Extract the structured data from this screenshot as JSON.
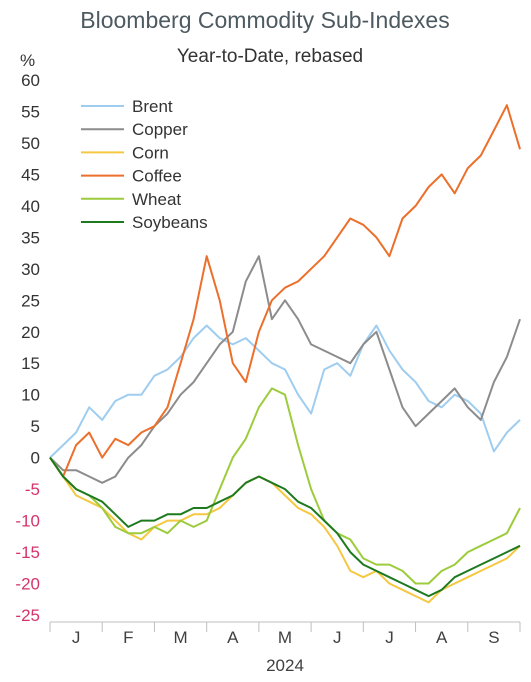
{
  "chart_data": {
    "type": "line",
    "title": "Bloomberg Commodity Sub-Indexes",
    "subtitle": "Year-to-Date, rebased",
    "ylabel": "%",
    "xlabel": "2024",
    "ylim": [
      -25,
      60
    ],
    "yticks": [
      60,
      55,
      50,
      45,
      40,
      35,
      30,
      25,
      20,
      15,
      10,
      5,
      0,
      -5,
      -10,
      -15,
      -20,
      -25
    ],
    "xlim": [
      0,
      9
    ],
    "month_ticks": [
      "J",
      "F",
      "M",
      "A",
      "M",
      "J",
      "J",
      "A",
      "S"
    ],
    "grid": false,
    "legend_position": "top-left",
    "negative_tick_color": "#d6336c",
    "positive_tick_color": "#333333",
    "series": [
      {
        "name": "Brent",
        "color": "#9fcdf0",
        "x": [
          0,
          0.25,
          0.5,
          0.75,
          1,
          1.25,
          1.5,
          1.75,
          2,
          2.25,
          2.5,
          2.75,
          3,
          3.25,
          3.5,
          3.75,
          4,
          4.25,
          4.5,
          4.75,
          5,
          5.25,
          5.5,
          5.75,
          6,
          6.25,
          6.5,
          6.75,
          7,
          7.25,
          7.5,
          7.75,
          8,
          8.25,
          8.5,
          8.75,
          9
        ],
        "values": [
          0,
          2,
          4,
          8,
          6,
          9,
          10,
          10,
          13,
          14,
          16,
          19,
          21,
          19,
          18,
          19,
          17,
          15,
          14,
          10,
          7,
          14,
          15,
          13,
          18,
          21,
          17,
          14,
          12,
          9,
          8,
          10,
          9,
          7,
          1,
          4,
          6
        ]
      },
      {
        "name": "Copper",
        "color": "#8c8c8c",
        "x": [
          0,
          0.25,
          0.5,
          0.75,
          1,
          1.25,
          1.5,
          1.75,
          2,
          2.25,
          2.5,
          2.75,
          3,
          3.25,
          3.5,
          3.75,
          4,
          4.25,
          4.5,
          4.75,
          5,
          5.25,
          5.5,
          5.75,
          6,
          6.25,
          6.5,
          6.75,
          7,
          7.25,
          7.5,
          7.75,
          8,
          8.25,
          8.5,
          8.75,
          9
        ],
        "values": [
          0,
          -2,
          -2,
          -3,
          -4,
          -3,
          0,
          2,
          5,
          7,
          10,
          12,
          15,
          18,
          20,
          28,
          32,
          22,
          25,
          22,
          18,
          17,
          16,
          15,
          18,
          20,
          14,
          8,
          5,
          7,
          9,
          11,
          8,
          6,
          12,
          16,
          22
        ]
      },
      {
        "name": "Corn",
        "color": "#f5c842",
        "x": [
          0,
          0.25,
          0.5,
          0.75,
          1,
          1.25,
          1.5,
          1.75,
          2,
          2.25,
          2.5,
          2.75,
          3,
          3.25,
          3.5,
          3.75,
          4,
          4.25,
          4.5,
          4.75,
          5,
          5.25,
          5.5,
          5.75,
          6,
          6.25,
          6.5,
          6.75,
          7,
          7.25,
          7.5,
          7.75,
          8,
          8.25,
          8.5,
          8.75,
          9
        ],
        "values": [
          0,
          -3,
          -6,
          -7,
          -8,
          -10,
          -12,
          -13,
          -11,
          -10,
          -10,
          -9,
          -9,
          -8,
          -6,
          -4,
          -3,
          -4,
          -6,
          -8,
          -9,
          -11,
          -14,
          -18,
          -19,
          -18,
          -20,
          -21,
          -22,
          -23,
          -21,
          -20,
          -19,
          -18,
          -17,
          -16,
          -14
        ]
      },
      {
        "name": "Coffee",
        "color": "#ec6f2b",
        "x": [
          0,
          0.25,
          0.5,
          0.75,
          1,
          1.25,
          1.5,
          1.75,
          2,
          2.25,
          2.5,
          2.75,
          3,
          3.25,
          3.5,
          3.75,
          4,
          4.25,
          4.5,
          4.75,
          5,
          5.25,
          5.5,
          5.75,
          6,
          6.25,
          6.5,
          6.75,
          7,
          7.25,
          7.5,
          7.75,
          8,
          8.25,
          8.5,
          8.75,
          9
        ],
        "values": [
          0,
          -3,
          2,
          4,
          0,
          3,
          2,
          4,
          5,
          8,
          15,
          22,
          32,
          25,
          15,
          12,
          20,
          25,
          27,
          28,
          30,
          32,
          35,
          38,
          37,
          35,
          32,
          38,
          40,
          43,
          45,
          42,
          46,
          48,
          52,
          56,
          49
        ]
      },
      {
        "name": "Wheat",
        "color": "#9ccc3c",
        "x": [
          0,
          0.25,
          0.5,
          0.75,
          1,
          1.25,
          1.5,
          1.75,
          2,
          2.25,
          2.5,
          2.75,
          3,
          3.25,
          3.5,
          3.75,
          4,
          4.25,
          4.5,
          4.75,
          5,
          5.25,
          5.5,
          5.75,
          6,
          6.25,
          6.5,
          6.75,
          7,
          7.25,
          7.5,
          7.75,
          8,
          8.25,
          8.5,
          8.75,
          9
        ],
        "values": [
          0,
          -3,
          -5,
          -6,
          -8,
          -11,
          -12,
          -12,
          -11,
          -12,
          -10,
          -11,
          -10,
          -5,
          0,
          3,
          8,
          11,
          10,
          2,
          -5,
          -10,
          -12,
          -13,
          -16,
          -17,
          -17,
          -18,
          -20,
          -20,
          -18,
          -17,
          -15,
          -14,
          -13,
          -12,
          -8
        ]
      },
      {
        "name": "Soybeans",
        "color": "#1e7a1e",
        "x": [
          0,
          0.25,
          0.5,
          0.75,
          1,
          1.25,
          1.5,
          1.75,
          2,
          2.25,
          2.5,
          2.75,
          3,
          3.25,
          3.5,
          3.75,
          4,
          4.25,
          4.5,
          4.75,
          5,
          5.25,
          5.5,
          5.75,
          6,
          6.25,
          6.5,
          6.75,
          7,
          7.25,
          7.5,
          7.75,
          8,
          8.25,
          8.5,
          8.75,
          9
        ],
        "values": [
          0,
          -3,
          -5,
          -6,
          -7,
          -9,
          -11,
          -10,
          -10,
          -9,
          -9,
          -8,
          -8,
          -7,
          -6,
          -4,
          -3,
          -4,
          -5,
          -7,
          -8,
          -10,
          -12,
          -15,
          -17,
          -18,
          -19,
          -20,
          -21,
          -22,
          -21,
          -19,
          -18,
          -17,
          -16,
          -15,
          -14
        ]
      }
    ]
  }
}
